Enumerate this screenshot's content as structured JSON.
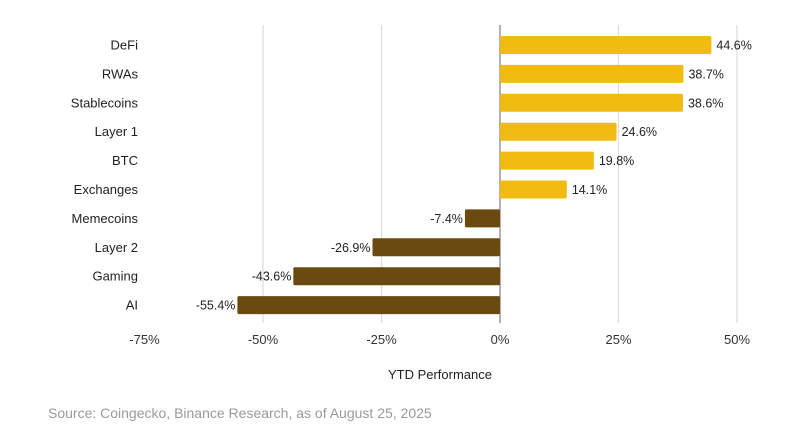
{
  "chart_data": {
    "type": "bar",
    "orientation": "horizontal",
    "categories": [
      "DeFi",
      "RWAs",
      "Stablecoins",
      "Layer 1",
      "BTC",
      "Exchanges",
      "Memecoins",
      "Layer 2",
      "Gaming",
      "AI"
    ],
    "values": [
      44.6,
      38.7,
      38.6,
      24.6,
      19.8,
      14.1,
      -7.4,
      -26.9,
      -43.6,
      -55.4
    ],
    "data_labels": [
      "44.6%",
      "38.7%",
      "38.6%",
      "24.6%",
      "19.8%",
      "14.1%",
      "-7.4%",
      "-26.9%",
      "-43.6%",
      "-55.4%"
    ],
    "xlabel": "YTD Performance",
    "ylabel": "",
    "xlim": [
      -75,
      50
    ],
    "xticks": [
      -75,
      -50,
      -25,
      0,
      25,
      50
    ],
    "xtick_labels": [
      "-75%",
      "-50%",
      "-25%",
      "0%",
      "25%",
      "50%"
    ],
    "grid": true,
    "colors": {
      "positive": "#F0BC12",
      "negative": "#6B4A10",
      "grid": "#dddddd",
      "zero_line": "#888888"
    }
  },
  "source": "Source: Coingecko, Binance Research, as of August 25, 2025"
}
